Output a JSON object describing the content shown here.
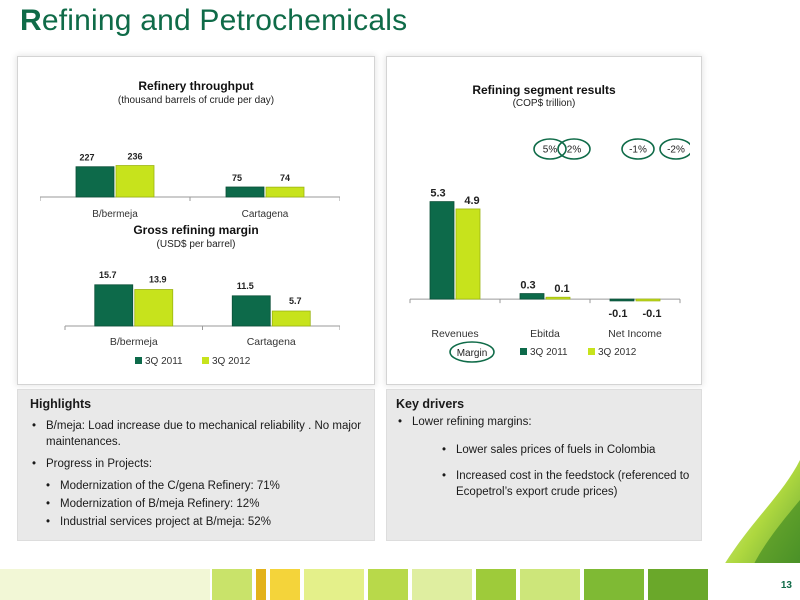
{
  "page": {
    "title_cap": "R",
    "title_rest": "efining and Petrochemicals",
    "page_number": "13"
  },
  "colors": {
    "brand_green": "#0f6b48",
    "dark_series": "#0d6a4a",
    "light_series": "#c7e31c"
  },
  "legend": {
    "series_2011": "3Q 2011",
    "series_2012": "3Q 2012"
  },
  "chart_data": [
    {
      "type": "bar",
      "title": "Refinery throughput",
      "subtitle": "(thousand barrels of crude per day)",
      "categories": [
        "B/bermeja",
        "Cartagena"
      ],
      "series": [
        {
          "name": "3Q 2011",
          "values": [
            227,
            75
          ],
          "labels": [
            "227",
            "75"
          ]
        },
        {
          "name": "3Q 2012",
          "values": [
            236,
            74
          ],
          "labels": [
            "236",
            "74"
          ]
        }
      ],
      "legend": "none"
    },
    {
      "type": "bar",
      "title": "Gross refining margin",
      "subtitle": "(USD$ per barrel)",
      "categories": [
        "B/bermeja",
        "Cartagena"
      ],
      "series": [
        {
          "name": "3Q 2011",
          "values": [
            15.7,
            11.5
          ],
          "labels": [
            "15.7",
            "11.5"
          ]
        },
        {
          "name": "3Q 2012",
          "values": [
            13.9,
            5.7
          ],
          "labels": [
            "13.9",
            "5.7"
          ]
        }
      ],
      "legend": "bottom"
    },
    {
      "type": "bar",
      "title": "Refining segment results",
      "subtitle": "(COP$ trillion)",
      "categories": [
        "Revenues",
        "Ebitda",
        "Net Income"
      ],
      "series": [
        {
          "name": "3Q 2011",
          "values": [
            5.3,
            0.3,
            -0.1
          ],
          "labels": [
            "5.3",
            "0.3",
            "-0.1"
          ]
        },
        {
          "name": "3Q 2012",
          "values": [
            4.9,
            0.1,
            -0.1
          ],
          "labels": [
            "4.9",
            "0.1",
            "-0.1"
          ]
        }
      ],
      "annotations": [
        "5%",
        "2%",
        "-1%",
        "-2%"
      ],
      "margin_label": "Margin",
      "legend": "bottom"
    }
  ],
  "highlights": {
    "heading": "Highlights",
    "b1": "B/meja: Load increase due to mechanical reliability . No major maintenances.",
    "b2": "Progress in Projects:",
    "b2_items": [
      "Modernization of the C/gena Refinery: 71%",
      "Modernization of B/meja Refinery: 12%",
      "Industrial services project at B/meja: 52%"
    ]
  },
  "drivers": {
    "heading": "Key drivers",
    "b1": "Lower refining margins:",
    "b1_items": [
      "Lower sales prices of  fuels in Colombia",
      "Increased cost in the feedstock (referenced to Ecopetrol’s export crude prices)"
    ]
  }
}
